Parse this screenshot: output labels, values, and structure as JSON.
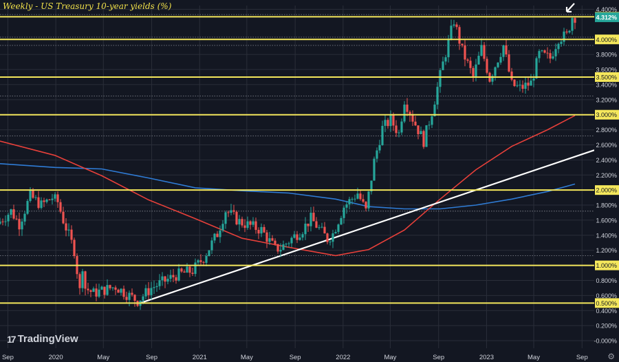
{
  "header": {
    "title": "Weekly - US Treasury 10-year yields (%)"
  },
  "brand": {
    "name": "TradingView",
    "mark": "17"
  },
  "footer": {
    "settings_icon": "gear-icon"
  },
  "colors": {
    "background": "#131722",
    "grid": "#2a2e39",
    "up": "#26a69a",
    "down": "#ef5350",
    "level_line": "#f5e85c",
    "trend_line": "#ffffff",
    "ma_red": "#e8403a",
    "ma_blue": "#2f7cd6",
    "badge_yellow": "#f5e85c",
    "badge_current": "#26a69a",
    "axis_text": "#d1d4dc"
  },
  "chart_data": {
    "type": "candlestick",
    "title": "Weekly - US Treasury 10-year yields (%)",
    "ylim": [
      -0.1,
      4.45
    ],
    "xlim": [
      "2019-08-12",
      "2023-10-02"
    ],
    "y_ticks": [
      "4.400%",
      "4.300%",
      "4.000%",
      "3.800%",
      "3.600%",
      "3.500%",
      "3.400%",
      "3.200%",
      "3.000%",
      "2.800%",
      "2.600%",
      "2.400%",
      "2.200%",
      "2.000%",
      "1.800%",
      "1.600%",
      "1.400%",
      "1.200%",
      "1.000%",
      "0.800%",
      "0.600%",
      "0.500%",
      "0.400%",
      "0.200%",
      "-0.000%"
    ],
    "y_tick_values": [
      4.4,
      4.3,
      4.0,
      3.8,
      3.6,
      3.5,
      3.4,
      3.2,
      3.0,
      2.8,
      2.6,
      2.4,
      2.2,
      2.0,
      1.8,
      1.6,
      1.4,
      1.2,
      1.0,
      0.8,
      0.6,
      0.5,
      0.4,
      0.2,
      0.0
    ],
    "highlighted_ticks": [
      "4.300%",
      "4.000%",
      "3.500%",
      "3.000%",
      "2.000%",
      "1.000%",
      "0.500%"
    ],
    "current_value": "4.312%",
    "x_ticks": [
      {
        "label": "Sep",
        "date": "2019-09-01"
      },
      {
        "label": "2020",
        "date": "2020-01-01"
      },
      {
        "label": "May",
        "date": "2020-05-01"
      },
      {
        "label": "Sep",
        "date": "2020-09-01"
      },
      {
        "label": "2021",
        "date": "2021-01-01"
      },
      {
        "label": "May",
        "date": "2021-05-01"
      },
      {
        "label": "Sep",
        "date": "2021-09-01"
      },
      {
        "label": "2022",
        "date": "2022-01-01"
      },
      {
        "label": "May",
        "date": "2022-05-01"
      },
      {
        "label": "Sep",
        "date": "2022-09-01"
      },
      {
        "label": "2023",
        "date": "2023-01-01"
      },
      {
        "label": "May",
        "date": "2023-05-01"
      },
      {
        "label": "Sep",
        "date": "2023-09-01"
      }
    ],
    "horizontal_levels": [
      4.3,
      4.0,
      3.5,
      3.0,
      2.0,
      1.0,
      0.5
    ],
    "dotted_levels": [
      4.33,
      4.03,
      3.92,
      3.25,
      2.72,
      1.72,
      1.13
    ],
    "trend_line": {
      "start": {
        "date": "2020-08-03",
        "value": 0.5
      },
      "end": {
        "date": "2023-10-02",
        "value": 2.53
      }
    },
    "red_ma": [
      {
        "date": "2019-08-12",
        "value": 2.65
      },
      {
        "date": "2019-12-30",
        "value": 2.46
      },
      {
        "date": "2020-04-27",
        "value": 2.19
      },
      {
        "date": "2020-08-24",
        "value": 1.87
      },
      {
        "date": "2020-12-21",
        "value": 1.62
      },
      {
        "date": "2021-04-19",
        "value": 1.36
      },
      {
        "date": "2021-08-16",
        "value": 1.24
      },
      {
        "date": "2021-12-13",
        "value": 1.13
      },
      {
        "date": "2022-03-07",
        "value": 1.21
      },
      {
        "date": "2022-06-06",
        "value": 1.47
      },
      {
        "date": "2022-09-05",
        "value": 1.88
      },
      {
        "date": "2022-12-05",
        "value": 2.27
      },
      {
        "date": "2023-03-06",
        "value": 2.58
      },
      {
        "date": "2023-06-05",
        "value": 2.8
      },
      {
        "date": "2023-08-14",
        "value": 2.99
      }
    ],
    "blue_ma": [
      {
        "date": "2019-08-12",
        "value": 2.35
      },
      {
        "date": "2019-12-30",
        "value": 2.3
      },
      {
        "date": "2020-04-27",
        "value": 2.28
      },
      {
        "date": "2020-08-24",
        "value": 2.16
      },
      {
        "date": "2020-12-21",
        "value": 2.03
      },
      {
        "date": "2021-04-19",
        "value": 1.99
      },
      {
        "date": "2021-08-16",
        "value": 1.96
      },
      {
        "date": "2021-12-13",
        "value": 1.88
      },
      {
        "date": "2022-03-07",
        "value": 1.78
      },
      {
        "date": "2022-06-06",
        "value": 1.75
      },
      {
        "date": "2022-09-05",
        "value": 1.75
      },
      {
        "date": "2022-12-05",
        "value": 1.8
      },
      {
        "date": "2023-03-06",
        "value": 1.88
      },
      {
        "date": "2023-06-05",
        "value": 1.98
      },
      {
        "date": "2023-08-14",
        "value": 2.08
      }
    ],
    "price_path": [
      {
        "date": "2019-08-12",
        "value": 1.55
      },
      {
        "date": "2019-09-16",
        "value": 1.72
      },
      {
        "date": "2019-10-07",
        "value": 1.55
      },
      {
        "date": "2019-11-04",
        "value": 1.92
      },
      {
        "date": "2019-12-02",
        "value": 1.8
      },
      {
        "date": "2019-12-30",
        "value": 1.9
      },
      {
        "date": "2020-01-13",
        "value": 1.84
      },
      {
        "date": "2020-01-27",
        "value": 1.6
      },
      {
        "date": "2020-02-24",
        "value": 1.2
      },
      {
        "date": "2020-03-09",
        "value": 0.66
      },
      {
        "date": "2020-03-16",
        "value": 1.0
      },
      {
        "date": "2020-03-23",
        "value": 0.7
      },
      {
        "date": "2020-04-13",
        "value": 0.63
      },
      {
        "date": "2020-06-08",
        "value": 0.72
      },
      {
        "date": "2020-07-06",
        "value": 0.62
      },
      {
        "date": "2020-08-03",
        "value": 0.53
      },
      {
        "date": "2020-09-07",
        "value": 0.7
      },
      {
        "date": "2020-11-09",
        "value": 0.87
      },
      {
        "date": "2020-12-21",
        "value": 0.93
      },
      {
        "date": "2021-01-18",
        "value": 1.1
      },
      {
        "date": "2021-02-22",
        "value": 1.42
      },
      {
        "date": "2021-03-15",
        "value": 1.73
      },
      {
        "date": "2021-04-19",
        "value": 1.58
      },
      {
        "date": "2021-06-14",
        "value": 1.47
      },
      {
        "date": "2021-07-19",
        "value": 1.22
      },
      {
        "date": "2021-08-02",
        "value": 1.23
      },
      {
        "date": "2021-09-27",
        "value": 1.48
      },
      {
        "date": "2021-10-18",
        "value": 1.62
      },
      {
        "date": "2021-11-29",
        "value": 1.35
      },
      {
        "date": "2021-12-13",
        "value": 1.42
      },
      {
        "date": "2022-01-10",
        "value": 1.78
      },
      {
        "date": "2022-02-14",
        "value": 1.96
      },
      {
        "date": "2022-03-07",
        "value": 1.72
      },
      {
        "date": "2022-03-28",
        "value": 2.38
      },
      {
        "date": "2022-04-18",
        "value": 2.82
      },
      {
        "date": "2022-05-09",
        "value": 2.93
      },
      {
        "date": "2022-05-30",
        "value": 2.75
      },
      {
        "date": "2022-06-13",
        "value": 3.2
      },
      {
        "date": "2022-07-04",
        "value": 2.95
      },
      {
        "date": "2022-08-01",
        "value": 2.65
      },
      {
        "date": "2022-08-22",
        "value": 3.04
      },
      {
        "date": "2022-09-19",
        "value": 3.68
      },
      {
        "date": "2022-10-17",
        "value": 4.25
      },
      {
        "date": "2022-11-07",
        "value": 3.85
      },
      {
        "date": "2022-12-05",
        "value": 3.5
      },
      {
        "date": "2022-12-26",
        "value": 3.88
      },
      {
        "date": "2023-01-16",
        "value": 3.48
      },
      {
        "date": "2023-02-20",
        "value": 3.92
      },
      {
        "date": "2023-03-13",
        "value": 3.4
      },
      {
        "date": "2023-04-03",
        "value": 3.35
      },
      {
        "date": "2023-05-01",
        "value": 3.42
      },
      {
        "date": "2023-05-22",
        "value": 3.8
      },
      {
        "date": "2023-06-19",
        "value": 3.75
      },
      {
        "date": "2023-07-10",
        "value": 4.02
      },
      {
        "date": "2023-07-31",
        "value": 4.05
      },
      {
        "date": "2023-08-14",
        "value": 4.3
      }
    ]
  }
}
